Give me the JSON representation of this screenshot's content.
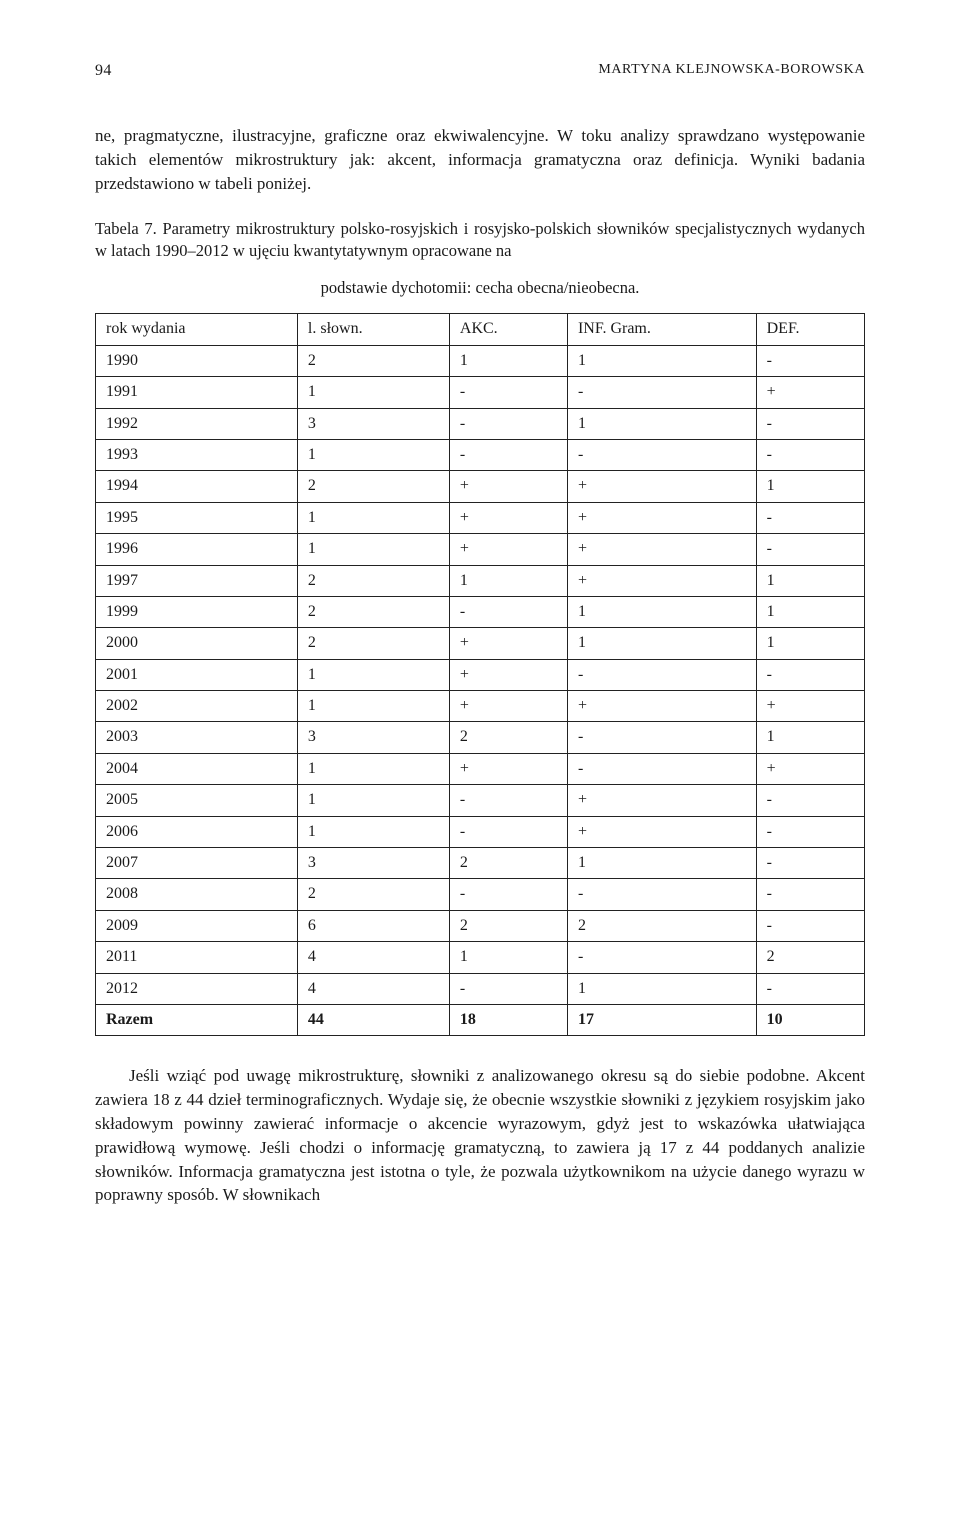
{
  "header": {
    "page_number": "94",
    "author": "MARTYNA KLEJNOWSKA-BOROWSKA"
  },
  "paragraph1": "ne, pragmatyczne, ilustracyjne, graficzne oraz ekwiwalencyjne. W toku analizy sprawdzano występowanie takich elementów mikrostruktury jak: akcent, informacja gramatyczna oraz definicja. Wyniki badania przedstawiono w tabeli poniżej.",
  "caption_line1": "Tabela 7. Parametry mikrostruktury polsko-rosyjskich i rosyjsko-polskich słowników specjalistycznych wydanych w latach 1990–2012 w ujęciu kwantytatywnym opracowane na",
  "caption_line2": "podstawie dychotomii: cecha obecna/nieobecna.",
  "table": {
    "columns": [
      "rok wydania",
      "l. słown.",
      "AKC.",
      "INF. Gram.",
      "DEF."
    ],
    "rows": [
      [
        "1990",
        "2",
        "1",
        "1",
        "-"
      ],
      [
        "1991",
        "1",
        "-",
        "-",
        "+"
      ],
      [
        "1992",
        "3",
        "-",
        "1",
        "-"
      ],
      [
        "1993",
        "1",
        "-",
        "-",
        "-"
      ],
      [
        "1994",
        "2",
        "+",
        "+",
        "1"
      ],
      [
        "1995",
        "1",
        "+",
        "+",
        "-"
      ],
      [
        "1996",
        "1",
        "+",
        "+",
        "-"
      ],
      [
        "1997",
        "2",
        "1",
        "+",
        "1"
      ],
      [
        "1999",
        "2",
        "-",
        "1",
        "1"
      ],
      [
        "2000",
        "2",
        "+",
        "1",
        "1"
      ],
      [
        "2001",
        "1",
        "+",
        "-",
        "-"
      ],
      [
        "2002",
        "1",
        "+",
        "+",
        "+"
      ],
      [
        "2003",
        "3",
        "2",
        "-",
        "1"
      ],
      [
        "2004",
        "1",
        "+",
        "-",
        "+"
      ],
      [
        "2005",
        "1",
        "-",
        "+",
        "-"
      ],
      [
        "2006",
        "1",
        "-",
        "+",
        "-"
      ],
      [
        "2007",
        "3",
        "2",
        "1",
        "-"
      ],
      [
        "2008",
        "2",
        "-",
        "-",
        "-"
      ],
      [
        "2009",
        "6",
        "2",
        "2",
        "-"
      ],
      [
        "2011",
        "4",
        "1",
        "-",
        "2"
      ],
      [
        "2012",
        "4",
        "-",
        "1",
        "-"
      ]
    ],
    "total_row": [
      "Razem",
      "44",
      "18",
      "17",
      "10"
    ]
  },
  "paragraph2": "Jeśli wziąć pod uwagę mikrostrukturę, słowniki z analizowanego okresu są do siebie podobne. Akcent zawiera 18 z 44 dzieł terminograficznych. Wydaje się, że obecnie wszystkie słowniki z językiem rosyjskim jako składowym powinny zawierać informacje o akcencie wyrazowym, gdyż jest to wskazówka ułatwiająca prawidłową wymowę. Jeśli chodzi o informację gramatyczną, to zawiera ją 17 z 44 poddanych analizie słowników. Informacja gramatyczna jest istotna o tyle, że pozwala użytkownikom na użycie danego wyrazu w poprawny sposób. W słownikach"
}
